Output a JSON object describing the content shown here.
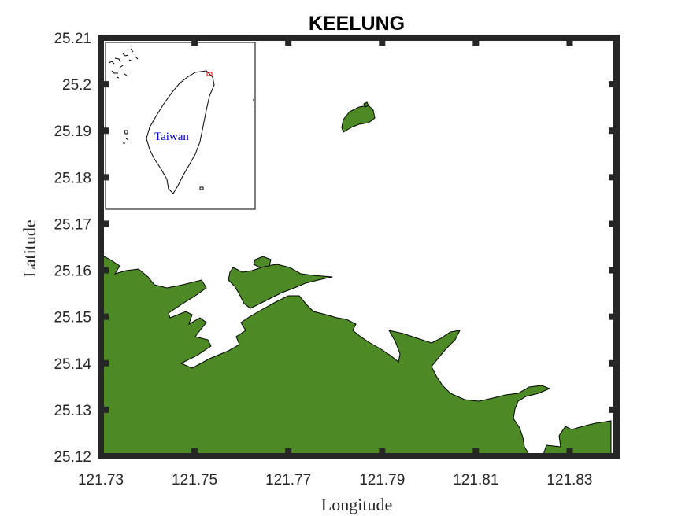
{
  "title": "KEELUNG",
  "axes": {
    "xlabel": "Longitude",
    "ylabel": "Latitude",
    "xlim": [
      121.73,
      121.84
    ],
    "ylim": [
      25.12,
      25.21
    ],
    "xticks": [
      "121.73",
      "121.75",
      "121.77",
      "121.79",
      "121.81",
      "121.83"
    ],
    "yticks": [
      "25.21",
      "25.2",
      "25.19",
      "25.18",
      "25.17",
      "25.16",
      "25.15",
      "25.14",
      "25.13",
      "25.12"
    ]
  },
  "inset": {
    "label": "Taiwan",
    "label_color": "#0000cc",
    "marker_color": "#ff0000"
  },
  "colors": {
    "land": "#4d8a26",
    "frame": "#262626",
    "water": "#ffffff"
  }
}
